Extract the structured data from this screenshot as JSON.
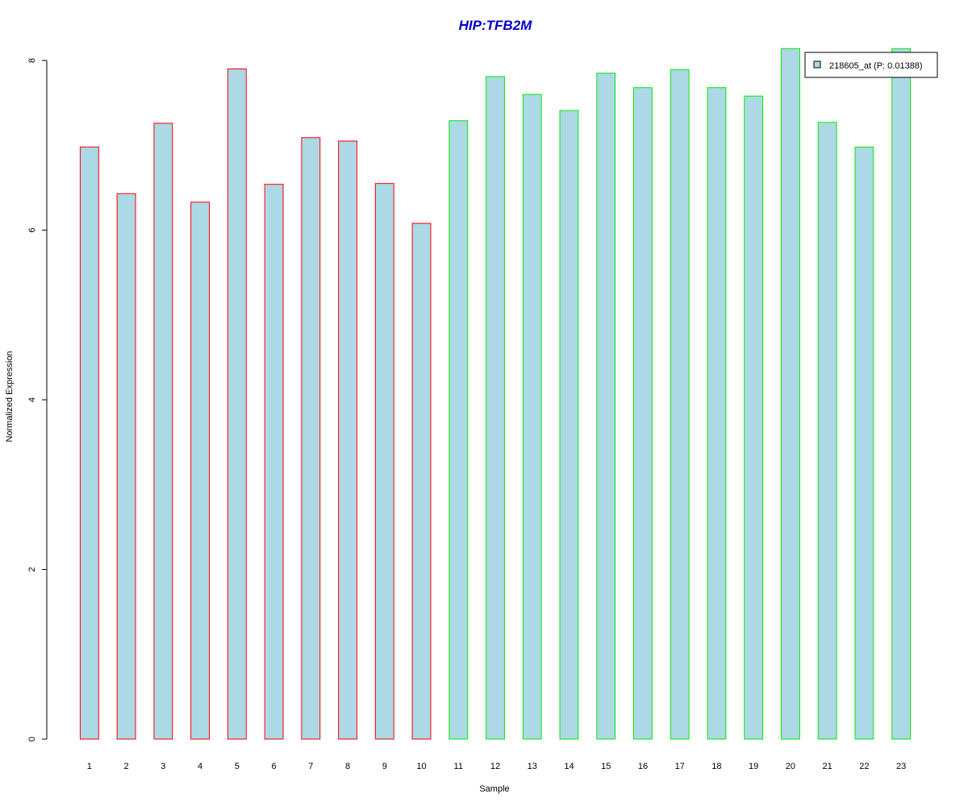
{
  "chart_data": {
    "type": "bar",
    "title": "HIP:TFB2M",
    "xlabel": "Sample",
    "ylabel": "Normalized Expression",
    "categories": [
      "1",
      "2",
      "3",
      "4",
      "5",
      "6",
      "7",
      "8",
      "9",
      "10",
      "11",
      "12",
      "13",
      "14",
      "15",
      "16",
      "17",
      "18",
      "19",
      "20",
      "21",
      "22",
      "23"
    ],
    "series": [
      {
        "name": "218605_at (P: 0.01388)",
        "values": [
          6.98,
          6.43,
          7.26,
          6.33,
          7.9,
          6.54,
          7.09,
          7.05,
          6.55,
          6.08,
          7.29,
          7.81,
          7.6,
          7.41,
          7.85,
          7.68,
          7.89,
          7.68,
          7.58,
          8.14,
          7.27,
          6.98,
          8.14
        ]
      }
    ],
    "groups": [
      {
        "from": 1,
        "to": 10,
        "border_color": "#ff0000"
      },
      {
        "from": 11,
        "to": 23,
        "border_color": "#00ee00"
      }
    ],
    "bar_fill": "#add8e6",
    "title_color": "#0000cd",
    "ylim": [
      0,
      8
    ],
    "yticks": [
      "0",
      "2",
      "4",
      "6",
      "8"
    ],
    "grid": false,
    "legend_position": "top-right"
  }
}
